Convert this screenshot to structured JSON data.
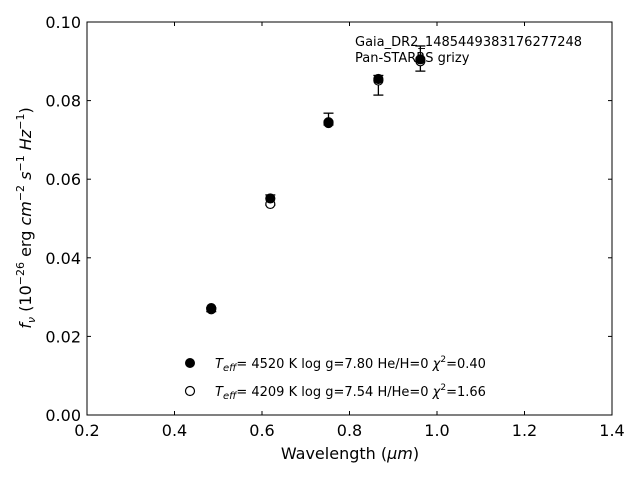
{
  "chart_data": {
    "type": "scatter",
    "xlabel_main": "Wavelength (",
    "xlabel_unit": "μm",
    "xlabel_close": ")",
    "ylabel": "f_ν (10^-26 erg cm^-2 s^-1 Hz^-1)",
    "xlim": [
      0.2,
      1.4
    ],
    "ylim": [
      0.0,
      0.1
    ],
    "xticks": [
      "0.2",
      "0.4",
      "0.6",
      "0.8",
      "1.0",
      "1.2",
      "1.4"
    ],
    "yticks": [
      "0.00",
      "0.02",
      "0.04",
      "0.06",
      "0.08",
      "0.10"
    ],
    "annotations": [
      "Gaia_DR2_1485449383176277248",
      "Pan-STARRS grizy"
    ],
    "observed": {
      "x": [
        0.484,
        0.619,
        0.752,
        0.866,
        0.962
      ],
      "y": [
        0.0268,
        0.0547,
        0.0753,
        0.0839,
        0.0907
      ],
      "yerr": [
        0.0005,
        0.0013,
        0.0015,
        0.0025,
        0.0032
      ]
    },
    "series": [
      {
        "marker": "filled",
        "label": {
          "teff": "4520 K",
          "logg": "log g=7.80",
          "comp": "He/H=0",
          "chi": "=0.40"
        },
        "x": [
          0.484,
          0.619,
          0.752,
          0.866,
          0.962
        ],
        "y": [
          0.0272,
          0.0551,
          0.0745,
          0.0855,
          0.0905
        ]
      },
      {
        "marker": "open",
        "label": {
          "teff": "4209 K",
          "logg": "log g=7.54",
          "comp": "H/He=0",
          "chi": "=1.66"
        },
        "x": [
          0.484,
          0.619,
          0.752,
          0.866,
          0.962
        ],
        "y": [
          0.0269,
          0.0537,
          0.0743,
          0.0851,
          0.09
        ]
      }
    ]
  }
}
